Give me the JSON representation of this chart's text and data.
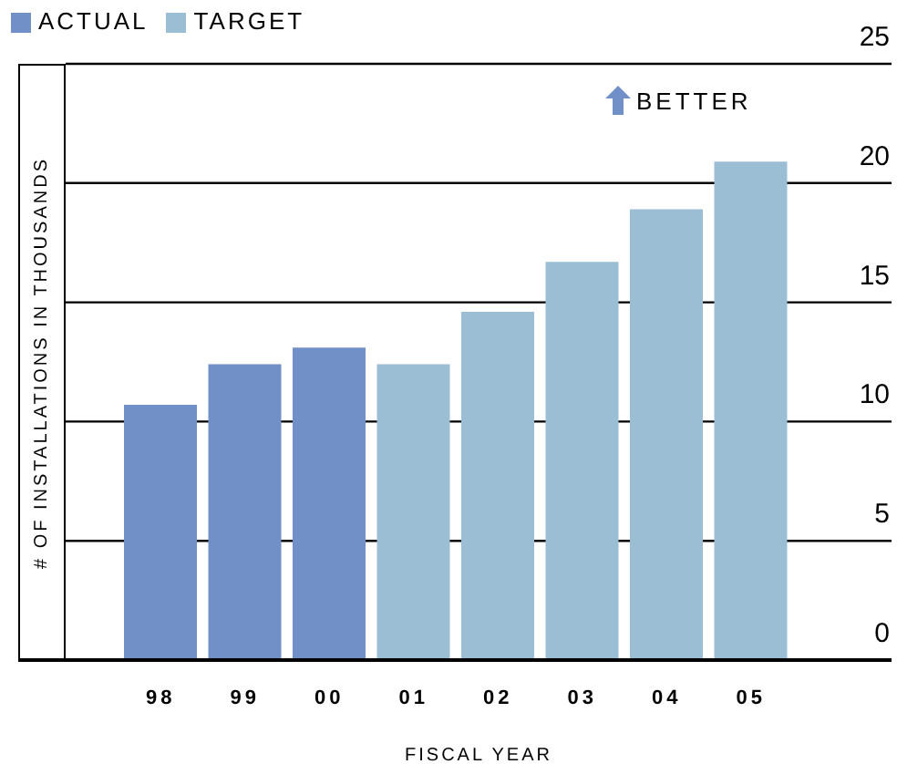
{
  "chart_data": {
    "type": "bar",
    "stacked": true,
    "categories": [
      "98",
      "99",
      "00",
      "01",
      "02",
      "03",
      "04",
      "05"
    ],
    "series": [
      {
        "name": "ACTUAL",
        "color": "#7190c8",
        "values": [
          10.7,
          12.4,
          13.1,
          null,
          null,
          null,
          null,
          null
        ]
      },
      {
        "name": "TARGET",
        "color": "#9bbed5",
        "values": [
          null,
          null,
          null,
          12.4,
          14.6,
          16.7,
          18.9,
          20.9
        ]
      }
    ],
    "ylim": [
      0,
      25
    ],
    "yticks": [
      0,
      5,
      10,
      15,
      20,
      25
    ],
    "grid": "y",
    "legend": "top left",
    "xlabel": "FISCAL YEAR",
    "ylabel": "# OF INSTALLATIONS IN THOUSANDS",
    "annotations": [
      "BETTER"
    ]
  }
}
